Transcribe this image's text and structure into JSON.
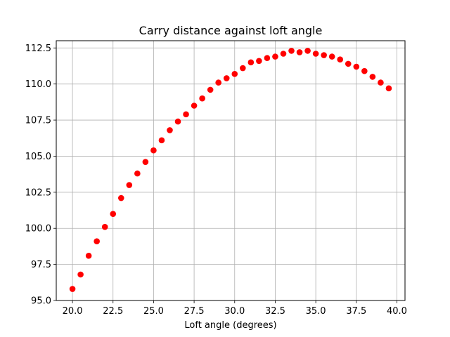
{
  "chart_data": {
    "type": "scatter",
    "title": "Carry distance against loft angle",
    "xlabel": "Loft angle (degrees)",
    "ylabel": "",
    "xlim": [
      19.0,
      40.5
    ],
    "ylim": [
      95.0,
      113.0
    ],
    "xticks": [
      20.0,
      22.5,
      25.0,
      27.5,
      30.0,
      32.5,
      35.0,
      37.5,
      40.0
    ],
    "xtick_labels": [
      "20.0",
      "22.5",
      "25.0",
      "27.5",
      "30.0",
      "32.5",
      "35.0",
      "37.5",
      "40.0"
    ],
    "yticks": [
      95.0,
      97.5,
      100.0,
      102.5,
      105.0,
      107.5,
      110.0,
      112.5
    ],
    "ytick_labels": [
      "95.0",
      "97.5",
      "100.0",
      "102.5",
      "105.0",
      "107.5",
      "110.0",
      "112.5"
    ],
    "grid": true,
    "marker_color": "#ff0000",
    "x": [
      20.0,
      20.5,
      21.0,
      21.5,
      22.0,
      22.5,
      23.0,
      23.5,
      24.0,
      24.5,
      25.0,
      25.5,
      26.0,
      26.5,
      27.0,
      27.5,
      28.0,
      28.5,
      29.0,
      29.5,
      30.0,
      30.5,
      31.0,
      31.5,
      32.0,
      32.5,
      33.0,
      33.5,
      34.0,
      34.5,
      35.0,
      35.5,
      36.0,
      36.5,
      37.0,
      37.5,
      38.0,
      38.5,
      39.0,
      39.5
    ],
    "y": [
      95.8,
      96.8,
      98.1,
      99.1,
      100.1,
      101.0,
      102.1,
      103.0,
      103.8,
      104.6,
      105.4,
      106.1,
      106.8,
      107.4,
      107.9,
      108.5,
      109.0,
      109.6,
      110.1,
      110.4,
      110.7,
      111.1,
      111.5,
      111.6,
      111.8,
      111.9,
      112.1,
      112.3,
      112.2,
      112.3,
      112.1,
      112.0,
      111.9,
      111.7,
      111.4,
      111.2,
      110.9,
      110.5,
      110.1,
      109.7
    ]
  }
}
